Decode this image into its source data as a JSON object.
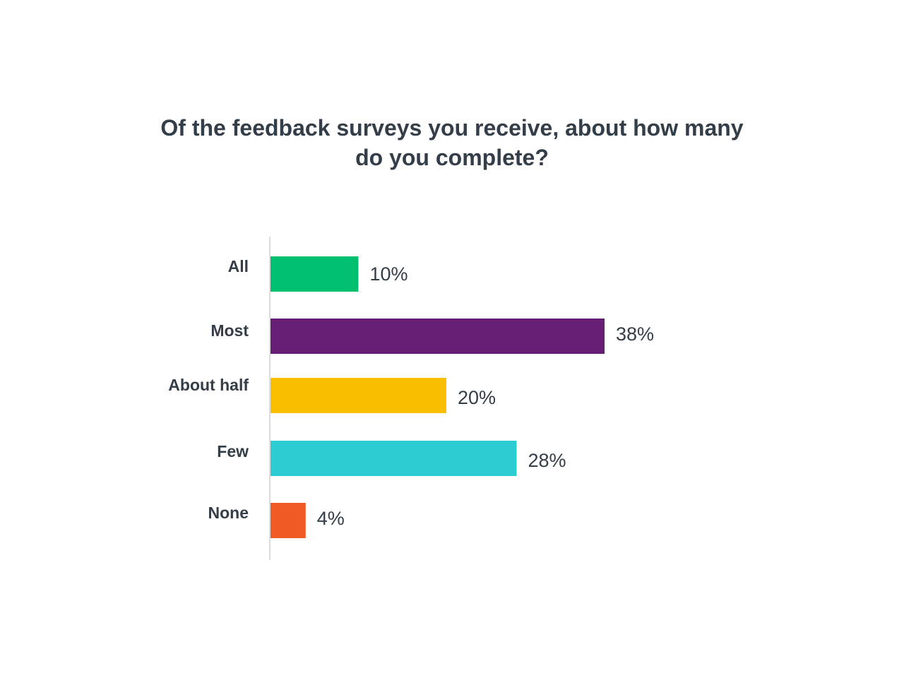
{
  "chart_data": {
    "type": "bar",
    "orientation": "horizontal",
    "title_lines": [
      "Of the feedback surveys you receive, about how many",
      "do you complete?"
    ],
    "categories": [
      "All",
      "Most",
      "About half",
      "Few",
      "None"
    ],
    "values": [
      10,
      38,
      20,
      28,
      4
    ],
    "value_labels": [
      "10%",
      "38%",
      "20%",
      "28%",
      "4%"
    ],
    "colors": [
      "#00bf6f",
      "#671e75",
      "#f9be00",
      "#2dccd3",
      "#f05b24"
    ],
    "xlim": [
      0,
      38
    ],
    "grid": false,
    "legend": "none"
  }
}
